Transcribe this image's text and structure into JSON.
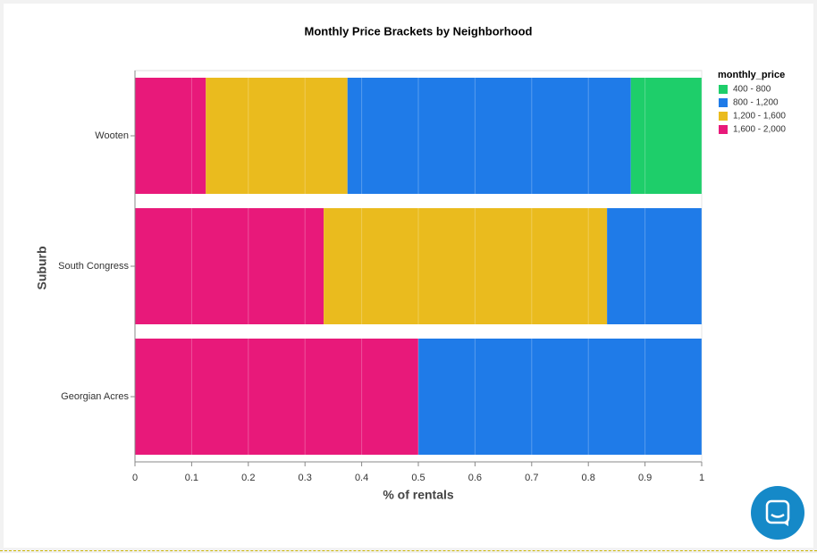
{
  "chart_data": {
    "type": "stacked-bar-horizontal",
    "title": "Monthly Price Brackets by Neighborhood",
    "x_label": "% of rentals",
    "y_label": "Suburb",
    "legend_title": "monthly_price",
    "categories": [
      "Wooten",
      "South Congress",
      "Georgian Acres"
    ],
    "series": [
      {
        "name": "400 - 800",
        "color": "#1ece6a",
        "values": [
          0.125,
          0,
          0
        ]
      },
      {
        "name": "800 - 1,200",
        "color": "#1f7be8",
        "values": [
          0.5,
          0.167,
          0.5
        ]
      },
      {
        "name": "1,200 - 1,600",
        "color": "#eabb1e",
        "values": [
          0.25,
          0.5,
          0
        ]
      },
      {
        "name": "1,600 - 2,000",
        "color": "#e8197a",
        "values": [
          0.125,
          0.333,
          0.5
        ]
      }
    ],
    "xlim": [
      0,
      1
    ],
    "xticks": [
      0,
      0.1,
      0.2,
      0.3,
      0.4,
      0.5,
      0.6,
      0.7,
      0.8,
      0.9,
      1
    ],
    "grid": true
  }
}
